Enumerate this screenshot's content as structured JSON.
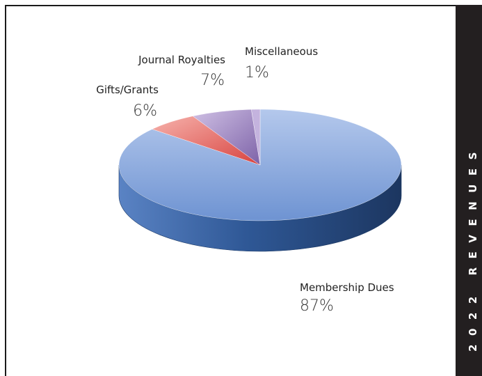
{
  "chart_data": {
    "type": "pie",
    "title": "2022 REVENUES",
    "slices": [
      {
        "label": "Membership Dues",
        "percent_label": "87%",
        "value": 87,
        "color": "#6f95d3"
      },
      {
        "label": "Gifts/Grants",
        "percent_label": "6%",
        "value": 6,
        "color": "#e0625e"
      },
      {
        "label": "Journal Royalties",
        "percent_label": "7%",
        "value": 7,
        "color": "#9a7fbf"
      },
      {
        "label": "Miscellaneous",
        "percent_label": "1%",
        "value": 1,
        "color": "#b9a2d6"
      }
    ],
    "style": "3d-pie",
    "legend": "none"
  }
}
